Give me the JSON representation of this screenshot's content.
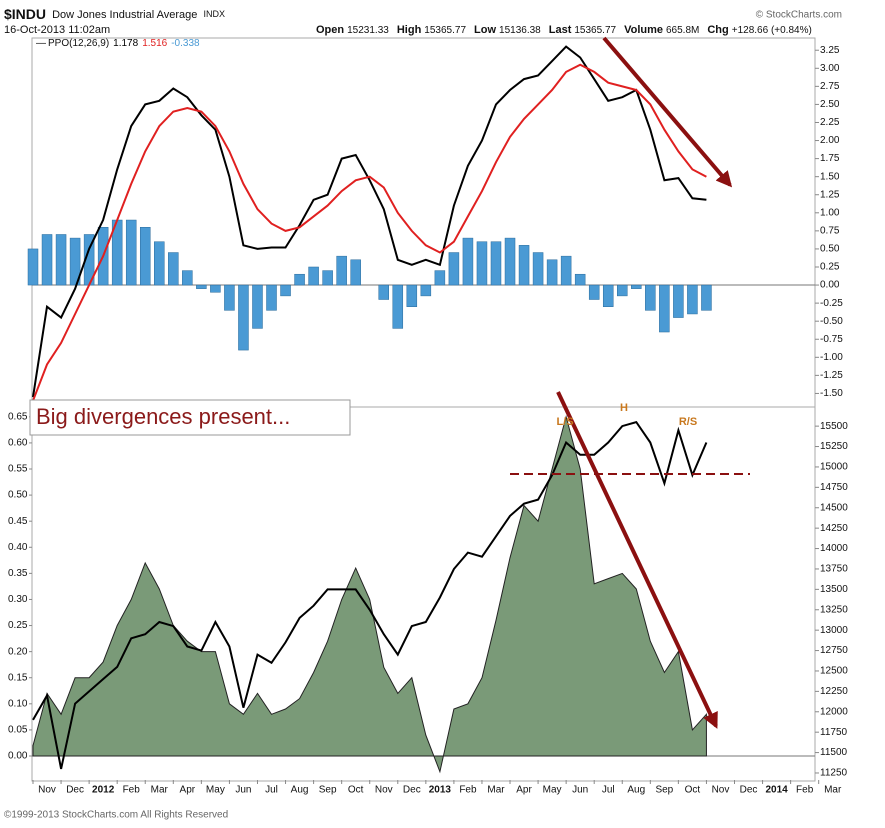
{
  "header": {
    "symbol": "$INDU",
    "name": "Dow Jones Industrial Average",
    "exchange": "INDX",
    "date": "16-Oct-2013 11:02am",
    "source": "© StockCharts.com",
    "quote": [
      {
        "label": "Open",
        "value": 15231.33
      },
      {
        "label": "High",
        "value": 15365.77
      },
      {
        "label": "Low",
        "value": 15136.38
      },
      {
        "label": "Last",
        "value": 15365.77
      },
      {
        "label": "Volume",
        "value": "665.8M"
      },
      {
        "label": "Chg",
        "value": "+128.66 (+0.84%)"
      }
    ]
  },
  "chart_data": [
    {
      "type": "line",
      "indicator": "PPO(12,26,9)",
      "last_values": [
        1.178,
        1.516,
        -0.338
      ],
      "ylim": [
        -1.66,
        3.35
      ],
      "yticks": [
        3.25,
        {
          "value": 3,
          "label": "3.00"
        },
        2.75,
        {
          "value": 2.5,
          "label": "2.50"
        },
        2.25,
        {
          "value": 2,
          "label": "2.00"
        },
        1.75,
        {
          "value": 1.5,
          "label": "1.50"
        },
        1.25,
        {
          "value": 1,
          "label": "1.00"
        },
        0.75,
        {
          "value": 0.5,
          "label": "0.50"
        },
        0.25,
        {
          "value": 0,
          "label": "0.00"
        },
        -0.25,
        {
          "value": -0.5,
          "label": "-0.50"
        },
        -0.75,
        {
          "value": -1,
          "label": "-1.00"
        },
        -1.25,
        {
          "value": -1.5,
          "label": "-1.50"
        }
      ],
      "series": [
        {
          "type": "bar",
          "color": "#4a9ad4",
          "values": [
            0.5,
            0.7,
            0.7,
            0.65,
            0.7,
            0.8,
            0.9,
            0.9,
            0.8,
            0.6,
            0.45,
            0.2,
            -0.05,
            -0.1,
            -0.35,
            -0.9,
            -0.6,
            -0.35,
            -0.15,
            0.15,
            0.25,
            0.2,
            0.4,
            0.35,
            0.0,
            -0.2,
            -0.6,
            -0.3,
            -0.15,
            0.2,
            0.45,
            0.65,
            0.6,
            0.6,
            0.65,
            0.55,
            0.45,
            0.35,
            0.4,
            0.15,
            -0.2,
            -0.3,
            -0.15,
            -0.05,
            -0.35,
            -0.65,
            -0.45,
            -0.4,
            -0.35,
            null,
            null,
            null,
            null,
            null,
            null,
            null,
            null,
            null
          ]
        },
        {
          "type": "line",
          "color": "#000000",
          "values": [
            -1.55,
            -0.3,
            -0.45,
            -0.05,
            0.5,
            0.9,
            1.6,
            2.2,
            2.5,
            2.55,
            2.72,
            2.6,
            2.35,
            2.15,
            1.5,
            0.55,
            0.5,
            0.52,
            0.52,
            0.83,
            1.18,
            1.25,
            1.75,
            1.8,
            1.45,
            1.05,
            0.35,
            0.28,
            0.35,
            0.28,
            1.1,
            1.65,
            2.0,
            2.5,
            2.7,
            2.85,
            2.9,
            3.1,
            3.3,
            3.15,
            2.85,
            2.55,
            2.6,
            2.7,
            2.15,
            1.45,
            1.48,
            1.2,
            1.18,
            null,
            null,
            null,
            null,
            null,
            null,
            null,
            null,
            null
          ]
        },
        {
          "type": "line",
          "color": "#e02020",
          "values": [
            -1.6,
            -1.1,
            -0.8,
            -0.4,
            0.0,
            0.4,
            0.9,
            1.4,
            1.85,
            2.2,
            2.4,
            2.45,
            2.4,
            2.2,
            1.85,
            1.4,
            1.05,
            0.85,
            0.75,
            0.8,
            0.95,
            1.1,
            1.3,
            1.45,
            1.5,
            1.35,
            1.0,
            0.75,
            0.55,
            0.45,
            0.6,
            0.95,
            1.3,
            1.7,
            2.05,
            2.3,
            2.5,
            2.7,
            2.95,
            3.05,
            2.95,
            2.8,
            2.75,
            2.7,
            2.5,
            2.15,
            1.85,
            1.6,
            1.5,
            null,
            null,
            null,
            null,
            null,
            null,
            null,
            null,
            null
          ]
        }
      ]
    },
    {
      "type": "area",
      "categories": [
        null,
        "Nov",
        null,
        "Dec",
        null,
        "2012",
        null,
        "Feb",
        null,
        "Mar",
        null,
        "Apr",
        null,
        "May",
        null,
        "Jun",
        null,
        "Jul",
        null,
        "Aug",
        null,
        "Sep",
        null,
        "Oct",
        null,
        "Nov",
        null,
        "Dec",
        null,
        "2013",
        null,
        "Feb",
        null,
        "Mar",
        null,
        "Apr",
        null,
        "May",
        null,
        "Jun",
        null,
        "Jul",
        null,
        "Aug",
        null,
        "Sep",
        null,
        "Oct",
        null,
        "Nov",
        null,
        "Dec",
        null,
        "2014",
        null,
        "Feb",
        null,
        "Mar"
      ],
      "ylim": [
        -0.046,
        0.665
      ],
      "yticks": [
        0.65,
        {
          "value": 0.6,
          "label": "0.60"
        },
        0.55,
        {
          "value": 0.5,
          "label": "0.50"
        },
        0.45,
        {
          "value": 0.4,
          "label": "0.40"
        },
        0.35,
        {
          "value": 0.3,
          "label": "0.30"
        },
        0.25,
        {
          "value": 0.2,
          "label": "0.20"
        },
        0.15,
        {
          "value": 0.1,
          "label": "0.10"
        },
        0.05,
        {
          "value": 0,
          "label": "0.00"
        }
      ],
      "y2lim": [
        11164,
        15710
      ],
      "y2ticks": [
        15500,
        15250,
        15000,
        14750,
        14500,
        14250,
        14000,
        13750,
        13500,
        13250,
        13000,
        12750,
        12500,
        12250,
        12000,
        11750,
        11500,
        11250
      ],
      "series": [
        {
          "type": "area",
          "color": "#7a9a78",
          "values": [
            0.02,
            0.12,
            0.08,
            0.15,
            0.15,
            0.18,
            0.25,
            0.3,
            0.37,
            0.32,
            0.25,
            0.22,
            0.2,
            0.2,
            0.1,
            0.08,
            0.12,
            0.08,
            0.09,
            0.11,
            0.16,
            0.22,
            0.3,
            0.36,
            0.3,
            0.17,
            0.12,
            0.15,
            0.04,
            -0.03,
            0.09,
            0.1,
            0.15,
            0.26,
            0.38,
            0.48,
            0.45,
            0.55,
            0.65,
            0.55,
            0.33,
            0.34,
            0.35,
            0.32,
            0.22,
            0.16,
            0.2,
            0.05,
            0.08,
            null,
            null,
            null,
            null,
            null,
            null,
            null,
            null,
            null
          ]
        },
        {
          "type": "line",
          "axis": "y2",
          "color": "#000000",
          "values": [
            11900,
            12200,
            11300,
            12100,
            12250,
            12400,
            12550,
            12900,
            12950,
            13100,
            13050,
            12800,
            12750,
            13100,
            12800,
            12050,
            12700,
            12600,
            12850,
            13150,
            13300,
            13500,
            13500,
            13500,
            13250,
            12950,
            12700,
            13050,
            13100,
            13400,
            13750,
            13950,
            13900,
            14150,
            14400,
            14550,
            14600,
            14900,
            15300,
            15150,
            15150,
            15300,
            15500,
            15550,
            15300,
            14800,
            15450,
            14900,
            15300,
            null,
            null,
            null,
            null,
            null,
            null,
            null,
            null,
            null
          ]
        }
      ],
      "annotations": [
        "Big divergences present...",
        "L/S",
        "H",
        "R/S"
      ]
    }
  ],
  "footer": "©1999-2013 StockCharts.com All Rights Reserved"
}
